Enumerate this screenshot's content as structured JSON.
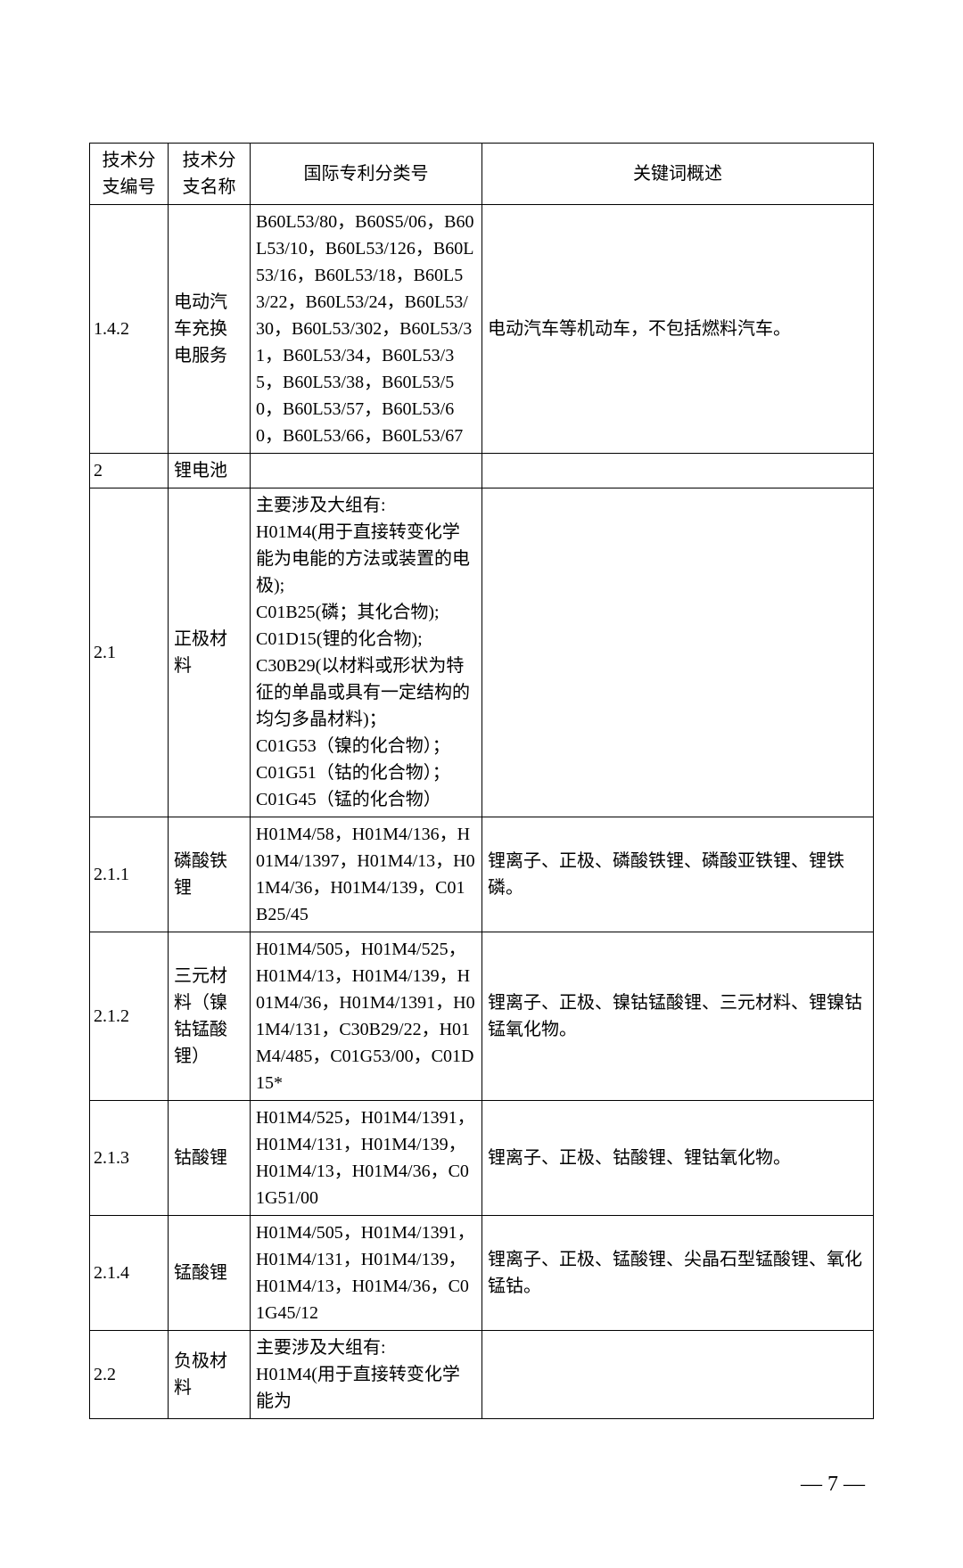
{
  "table": {
    "headers": {
      "col_num": "技术分支编号",
      "col_name": "技术分支名称",
      "col_ipc": "国际专利分类号",
      "col_key": "关键词概述"
    },
    "rows": [
      {
        "num": "1.4.2",
        "name": "电动汽车充换电服务",
        "ipc": "B60L53/80，B60S5/06，B60L53/10，B60L53/126，B60L53/16，B60L53/18，B60L53/22，B60L53/24，B60L53/30，B60L53/302，B60L53/31，B60L53/34，B60L53/35，B60L53/38，B60L53/50，B60L53/57，B60L53/60，B60L53/66，B60L53/67",
        "key": "电动汽车等机动车，不包括燃料汽车。"
      },
      {
        "num": "2",
        "name": "锂电池",
        "ipc": "",
        "key": ""
      },
      {
        "num": "2.1",
        "name": "正极材料",
        "ipc": "主要涉及大组有:\nH01M4(用于直接转变化学能为电能的方法或装置的电极);\nC01B25(磷；其化合物);\nC01D15(锂的化合物);\nC30B29(以材料或形状为特征的单晶或具有一定结构的均匀多晶材料)；\nC01G53（镍的化合物）；\nC01G51（钴的化合物）；\nC01G45（锰的化合物）",
        "key": ""
      },
      {
        "num": "2.1.1",
        "name": "磷酸铁锂",
        "ipc": "H01M4/58，H01M4/136，H01M4/1397，H01M4/13，H01M4/36，H01M4/139，C01B25/45",
        "key": "锂离子、正极、磷酸铁锂、磷酸亚铁锂、锂铁磷。"
      },
      {
        "num": "2.1.2",
        "name": "三元材料（镍钴锰酸锂）",
        "ipc": "H01M4/505，H01M4/525，H01M4/13，H01M4/139，H01M4/36，H01M4/1391，H01M4/131，C30B29/22，H01M4/485，C01G53/00，C01D15*",
        "key": "锂离子、正极、镍钴锰酸锂、三元材料、锂镍钴锰氧化物。"
      },
      {
        "num": "2.1.3",
        "name": "钴酸锂",
        "ipc": "H01M4/525，H01M4/1391，H01M4/131，H01M4/139，H01M4/13，H01M4/36，C01G51/00",
        "key": "锂离子、正极、钴酸锂、锂钴氧化物。"
      },
      {
        "num": "2.1.4",
        "name": "锰酸锂",
        "ipc": "H01M4/505，H01M4/1391，H01M4/131，H01M4/139，H01M4/13，H01M4/36，C01G45/12",
        "key": "锂离子、正极、锰酸锂、尖晶石型锰酸锂、氧化锰钴。"
      },
      {
        "num": "2.2",
        "name": "负极材料",
        "ipc": "主要涉及大组有:\nH01M4(用于直接转变化学能为",
        "key": ""
      }
    ]
  },
  "page_number": "— 7 —"
}
